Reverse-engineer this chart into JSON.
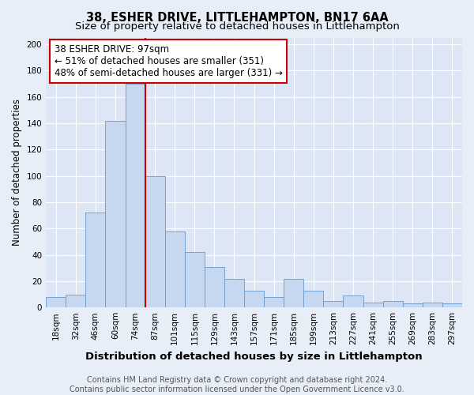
{
  "title": "38, ESHER DRIVE, LITTLEHAMPTON, BN17 6AA",
  "subtitle": "Size of property relative to detached houses in Littlehampton",
  "xlabel": "Distribution of detached houses by size in Littlehampton",
  "ylabel": "Number of detached properties",
  "bar_labels": [
    "18sqm",
    "32sqm",
    "46sqm",
    "60sqm",
    "74sqm",
    "87sqm",
    "101sqm",
    "115sqm",
    "129sqm",
    "143sqm",
    "157sqm",
    "171sqm",
    "185sqm",
    "199sqm",
    "213sqm",
    "227sqm",
    "241sqm",
    "255sqm",
    "269sqm",
    "283sqm",
    "297sqm"
  ],
  "bar_heights": [
    8,
    10,
    72,
    142,
    170,
    100,
    58,
    42,
    31,
    22,
    13,
    8,
    22,
    13,
    5,
    9,
    4,
    5,
    3,
    4,
    3
  ],
  "bar_color": "#c5d8ef",
  "bar_edge_color": "#6699cc",
  "vline_pos": 4.5,
  "vline_color": "#cc0000",
  "annotation_box_edge_color": "#cc0000",
  "annotation_title": "38 ESHER DRIVE: 97sqm",
  "annotation_line1": "← 51% of detached houses are smaller (351)",
  "annotation_line2": "48% of semi-detached houses are larger (331) →",
  "ylim": [
    0,
    205
  ],
  "yticks": [
    0,
    20,
    40,
    60,
    80,
    100,
    120,
    140,
    160,
    180,
    200
  ],
  "background_color": "#e8eef8",
  "plot_bg_color": "#dce6f5",
  "footer_line1": "Contains HM Land Registry data © Crown copyright and database right 2024.",
  "footer_line2": "Contains public sector information licensed under the Open Government Licence v3.0.",
  "title_fontsize": 10.5,
  "subtitle_fontsize": 9.5,
  "xlabel_fontsize": 9.5,
  "ylabel_fontsize": 8.5,
  "tick_fontsize": 7.5,
  "annotation_fontsize": 8.5,
  "footer_fontsize": 7
}
